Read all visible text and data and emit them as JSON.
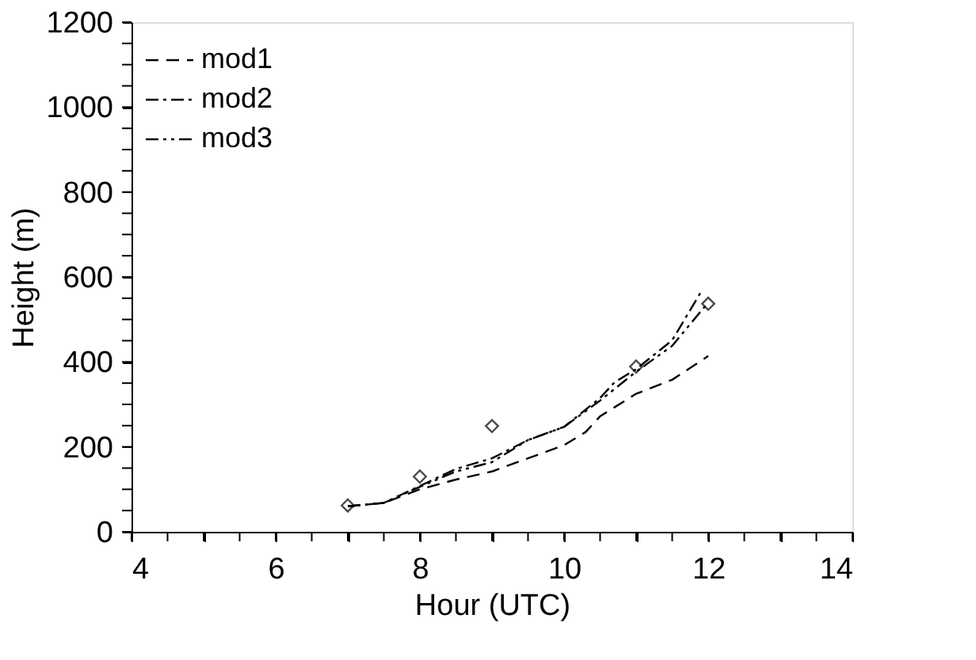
{
  "chart_data": {
    "type": "line",
    "xlabel": "Hour (UTC)",
    "ylabel": "Height (m)",
    "xlim": [
      4,
      14
    ],
    "ylim": [
      0,
      1200
    ],
    "xticks": [
      4,
      {
        "value": 4.5,
        "label": null
      },
      {
        "value": 5,
        "label": null
      },
      {
        "value": 5.5,
        "label": null
      },
      6,
      {
        "value": 6.5,
        "label": null
      },
      {
        "value": 7,
        "label": null
      },
      {
        "value": 7.5,
        "label": null
      },
      8,
      {
        "value": 8.5,
        "label": null
      },
      {
        "value": 9,
        "label": null
      },
      {
        "value": 9.5,
        "label": null
      },
      10,
      {
        "value": 10.5,
        "label": null
      },
      {
        "value": 11,
        "label": null
      },
      {
        "value": 11.5,
        "label": null
      },
      12,
      {
        "value": 12.5,
        "label": null
      },
      {
        "value": 13,
        "label": null
      },
      {
        "value": 13.5,
        "label": null
      },
      14
    ],
    "yticks": [
      0,
      {
        "value": 50,
        "label": null
      },
      {
        "value": 100,
        "label": null
      },
      {
        "value": 150,
        "label": null
      },
      200,
      {
        "value": 250,
        "label": null
      },
      {
        "value": 300,
        "label": null
      },
      {
        "value": 350,
        "label": null
      },
      400,
      {
        "value": 450,
        "label": null
      },
      {
        "value": 500,
        "label": null
      },
      {
        "value": 550,
        "label": null
      },
      600,
      {
        "value": 650,
        "label": null
      },
      {
        "value": 700,
        "label": null
      },
      {
        "value": 750,
        "label": null
      },
      800,
      {
        "value": 850,
        "label": null
      },
      {
        "value": 900,
        "label": null
      },
      {
        "value": 950,
        "label": null
      },
      1000,
      {
        "value": 1050,
        "label": null
      },
      {
        "value": 1100,
        "label": null
      },
      {
        "value": 1150,
        "label": null
      },
      1200
    ],
    "grid": false,
    "legend": "top left",
    "series": [
      {
        "name": "mod1",
        "type": "line",
        "line_style": "dashed",
        "color": "#000000",
        "x": [
          7,
          7.5,
          8,
          8.5,
          9,
          9.5,
          10,
          10.3,
          10.5,
          11,
          11.5,
          12
        ],
        "values": [
          60,
          68,
          100,
          123,
          142,
          173,
          204,
          235,
          272,
          325,
          358,
          414
        ]
      },
      {
        "name": "mod2",
        "type": "line",
        "line_style": "dashdot",
        "color": "#000000",
        "x": [
          7,
          7.5,
          8,
          8.5,
          9,
          9.5,
          10,
          10.5,
          10.7,
          11,
          11.5,
          11.9
        ],
        "values": [
          60,
          68,
          108,
          148,
          173,
          216,
          247,
          315,
          352,
          383,
          451,
          565
        ]
      },
      {
        "name": "mod3",
        "type": "line",
        "line_style": "dashdotdot",
        "color": "#000000",
        "x": [
          7,
          7.5,
          8,
          8.5,
          9,
          9.5,
          10,
          10.5,
          11,
          11.5,
          12
        ],
        "values": [
          60,
          68,
          106,
          142,
          164,
          216,
          247,
          309,
          377,
          438,
          540
        ]
      },
      {
        "type": "scatter",
        "marker": "diamond",
        "color": "#000000",
        "x": [
          7,
          8,
          9,
          11,
          12
        ],
        "values": [
          62,
          130,
          249,
          389,
          537
        ]
      }
    ]
  }
}
